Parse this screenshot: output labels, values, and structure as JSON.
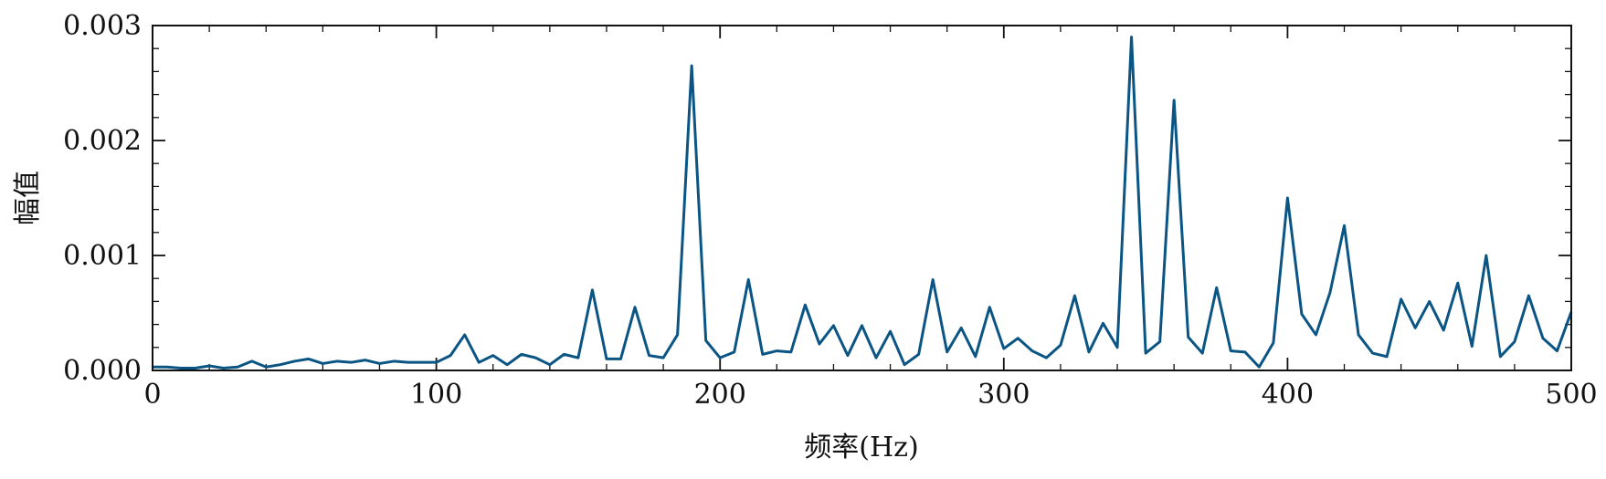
{
  "chart_data": {
    "type": "line",
    "title": "",
    "xlabel": "频率(Hz)",
    "ylabel": "幅值",
    "xlim": [
      0,
      500
    ],
    "ylim": [
      0,
      0.003
    ],
    "x_ticks": [
      0,
      100,
      200,
      300,
      400,
      500
    ],
    "x_tick_labels": [
      "0",
      "100",
      "200",
      "300",
      "400",
      "500"
    ],
    "y_ticks": [
      0,
      0.001,
      0.002,
      0.003
    ],
    "y_tick_labels": [
      "0.000",
      "0.001",
      "0.002",
      "0.003"
    ],
    "grid": false,
    "line_color": "#0b5585",
    "series": [
      {
        "x": [
          0,
          5,
          10,
          15,
          20,
          25,
          30,
          35,
          40,
          45,
          50,
          55,
          60,
          65,
          70,
          75,
          80,
          85,
          90,
          95,
          100,
          105,
          110,
          115,
          120,
          125,
          130,
          135,
          140,
          145,
          150,
          155,
          160,
          165,
          170,
          175,
          180,
          185,
          190,
          195,
          200,
          205,
          210,
          215,
          220,
          225,
          230,
          235,
          240,
          245,
          250,
          255,
          260,
          265,
          270,
          275,
          280,
          285,
          290,
          295,
          300,
          305,
          310,
          315,
          320,
          325,
          330,
          335,
          340,
          345,
          350,
          355,
          360,
          365,
          370,
          375,
          380,
          385,
          390,
          395,
          400,
          405,
          410,
          415,
          420,
          425,
          430,
          435,
          440,
          445,
          450,
          455,
          460,
          465,
          470,
          475,
          480,
          485,
          490,
          495,
          500
        ],
        "values": [
          3e-05,
          3e-05,
          2e-05,
          2e-05,
          4e-05,
          2e-05,
          3e-05,
          8e-05,
          3e-05,
          5e-05,
          8e-05,
          0.0001,
          6e-05,
          8e-05,
          7e-05,
          9e-05,
          6e-05,
          8e-05,
          7e-05,
          7e-05,
          7e-05,
          0.00013,
          0.00031,
          7e-05,
          0.00013,
          5e-05,
          0.00014,
          0.00011,
          5e-05,
          0.00014,
          0.00011,
          0.0007,
          0.0001,
          0.0001,
          0.00055,
          0.00013,
          0.00011,
          0.00031,
          0.00265,
          0.00026,
          0.00011,
          0.00016,
          0.00079,
          0.00014,
          0.00017,
          0.00016,
          0.00057,
          0.00023,
          0.00039,
          0.00013,
          0.00039,
          0.00011,
          0.00034,
          5e-05,
          0.00014,
          0.00079,
          0.00016,
          0.00037,
          0.00012,
          0.00055,
          0.00019,
          0.00028,
          0.00017,
          0.00011,
          0.00022,
          0.00065,
          0.00016,
          0.00041,
          0.0002,
          0.0029,
          0.00015,
          0.00025,
          0.00235,
          0.00029,
          0.00015,
          0.00072,
          0.00017,
          0.00016,
          3e-05,
          0.00024,
          0.0015,
          0.00049,
          0.00031,
          0.00068,
          0.00126,
          0.00031,
          0.00015,
          0.00012,
          0.00062,
          0.00037,
          0.0006,
          0.00035,
          0.00076,
          0.00021,
          0.001,
          0.00012,
          0.00025,
          0.00065,
          0.00028,
          0.00017,
          0.00051
        ]
      }
    ]
  }
}
